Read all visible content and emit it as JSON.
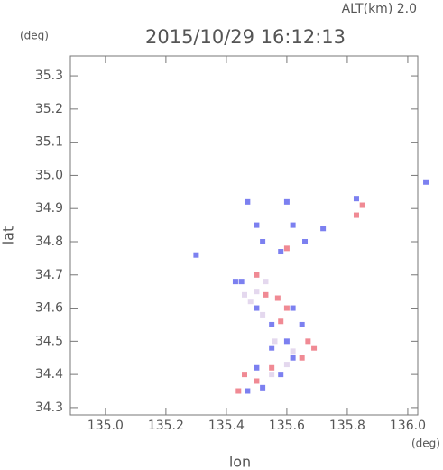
{
  "chart_data": {
    "type": "scatter",
    "title": "2015/10/29 16:12:13",
    "subtitle": "ALT(km) 2.0",
    "x_label": "lon",
    "y_label": "lat",
    "x_unit": "(deg)",
    "y_unit": "(deg)",
    "xlim": [
      134.884,
      136.033
    ],
    "ylim": [
      34.278,
      35.36
    ],
    "xticks": [
      {
        "value": 135.0,
        "label": "135.0"
      },
      135.2,
      135.4,
      135.6,
      135.8,
      {
        "value": 136.0,
        "label": "136.0"
      }
    ],
    "yticks": [
      34.3,
      34.4,
      34.5,
      34.6,
      34.7,
      34.8,
      34.9,
      {
        "value": 35.0,
        "label": "35.0"
      },
      35.1,
      35.2,
      35.3
    ],
    "series": [
      {
        "color": "#e4d8ee",
        "x": [
          135.5,
          135.48,
          135.53,
          135.52,
          135.46,
          135.56,
          135.62,
          135.6,
          135.55,
          135.5
        ],
        "y": [
          34.65,
          34.62,
          34.68,
          34.58,
          34.64,
          34.5,
          34.47,
          34.43,
          34.4,
          34.7
        ]
      },
      {
        "color": "#f08a94",
        "x": [
          135.83,
          135.85,
          135.53,
          135.57,
          135.6,
          135.67,
          135.69,
          135.46,
          135.5,
          135.55,
          135.44,
          135.65,
          135.58,
          135.5,
          135.6
        ],
        "y": [
          34.88,
          34.91,
          34.64,
          34.63,
          34.6,
          34.5,
          34.48,
          34.4,
          34.38,
          34.42,
          34.35,
          34.45,
          34.56,
          34.7,
          34.78
        ]
      },
      {
        "color": "#7c80f0",
        "x": [
          135.47,
          135.6,
          135.5,
          135.52,
          135.62,
          135.66,
          135.58,
          135.72,
          135.45,
          135.5,
          135.62,
          135.55,
          135.65,
          135.6,
          135.55,
          135.62,
          135.5,
          135.58,
          135.52,
          135.47,
          135.83,
          135.43,
          135.3,
          136.06
        ],
        "y": [
          34.92,
          34.92,
          34.85,
          34.8,
          34.85,
          34.8,
          34.77,
          34.84,
          34.68,
          34.6,
          34.6,
          34.55,
          34.55,
          34.5,
          34.48,
          34.45,
          34.42,
          34.4,
          34.36,
          34.35,
          34.93,
          34.68,
          34.76,
          34.98
        ]
      }
    ]
  }
}
